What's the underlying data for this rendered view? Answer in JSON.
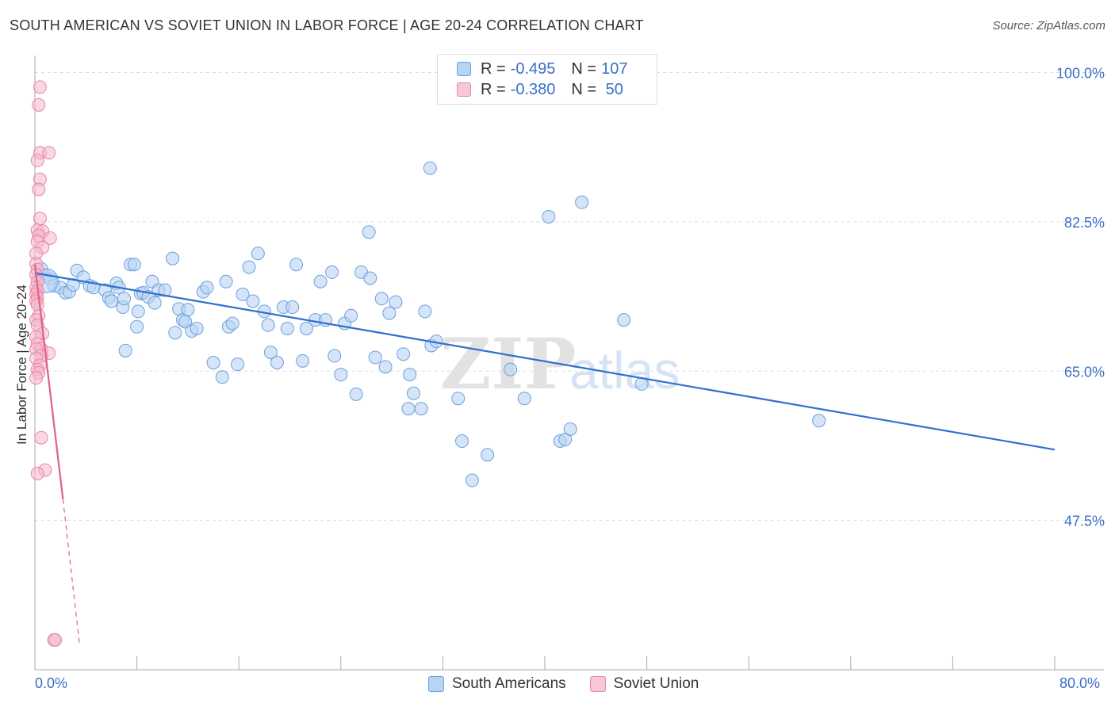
{
  "title": "SOUTH AMERICAN VS SOVIET UNION IN LABOR FORCE | AGE 20-24 CORRELATION CHART",
  "source": "Source: ZipAtlas.com",
  "legend": {
    "rows": [
      {
        "r_label": "R = ",
        "r_value": "-0.495",
        "n_label": "N = ",
        "n_value": "107",
        "color": "#a8c8ee",
        "border": "#6a9fe0"
      },
      {
        "r_label": "R = ",
        "r_value": "-0.380",
        "n_label": "N = ",
        "n_value": " 50",
        "color": "#f6b6ca",
        "border": "#e887a6"
      }
    ]
  },
  "bottom_legend": [
    "South Americans",
    "Soviet Union"
  ],
  "chart_data": {
    "type": "scatter",
    "xlabel": "",
    "ylabel": "In Labor Force | Age 20-24",
    "xlim": [
      0,
      80
    ],
    "ylim": [
      30,
      102
    ],
    "x_tick_labels": [
      "0.0%",
      "80.0%"
    ],
    "y_tick_labels": [
      "100.0%",
      "82.5%",
      "65.0%",
      "47.5%"
    ],
    "y_ticks": [
      100,
      82.5,
      65,
      47.5
    ],
    "watermark": "ZIPatlas",
    "colors": {
      "blue": "#6a9fe0",
      "blue_fill": "#b9d3f2",
      "blue_line": "#2f6fd0",
      "pink": "#e887a6",
      "pink_fill": "#f6b6ca",
      "pink_line": "#e0608a"
    },
    "series": [
      {
        "name": "South Americans",
        "trend": {
          "x": [
            0,
            80
          ],
          "y": [
            76.5,
            55.8
          ]
        },
        "points": [
          [
            0.5,
            77
          ],
          [
            0.8,
            76.2
          ],
          [
            1.2,
            75.8
          ],
          [
            1.5,
            75
          ],
          [
            2,
            74.8
          ],
          [
            2.4,
            74.2
          ],
          [
            2.7,
            74.3
          ],
          [
            3.3,
            76.8
          ],
          [
            3.0,
            75.1
          ],
          [
            3.8,
            76
          ],
          [
            4.3,
            75
          ],
          [
            4.6,
            74.8
          ],
          [
            5.5,
            74.5
          ],
          [
            5.8,
            73.6
          ],
          [
            6.0,
            73.2
          ],
          [
            6.4,
            75.3
          ],
          [
            6.6,
            74.8
          ],
          [
            6.9,
            72.5
          ],
          [
            7.0,
            73.5
          ],
          [
            7.1,
            67.4
          ],
          [
            7.5,
            77.5
          ],
          [
            7.8,
            77.5
          ],
          [
            8.0,
            70.2
          ],
          [
            8.1,
            72.0
          ],
          [
            8.3,
            74.1
          ],
          [
            8.5,
            74.2
          ],
          [
            8.9,
            73.7
          ],
          [
            9.2,
            75.5
          ],
          [
            9.4,
            73.0
          ],
          [
            9.7,
            74.5
          ],
          [
            10.2,
            74.5
          ],
          [
            10.8,
            78.2
          ],
          [
            11.0,
            69.5
          ],
          [
            11.3,
            72.3
          ],
          [
            11.6,
            71.0
          ],
          [
            11.8,
            70.8
          ],
          [
            12.0,
            72.2
          ],
          [
            12.3,
            69.7
          ],
          [
            12.7,
            70.0
          ],
          [
            13.2,
            74.3
          ],
          [
            13.5,
            74.8
          ],
          [
            14.0,
            66.0
          ],
          [
            14.7,
            64.3
          ],
          [
            15.0,
            75.5
          ],
          [
            15.2,
            70.2
          ],
          [
            15.5,
            70.6
          ],
          [
            15.9,
            65.8
          ],
          [
            16.3,
            74.0
          ],
          [
            16.8,
            77.2
          ],
          [
            17.1,
            73.2
          ],
          [
            17.5,
            78.8
          ],
          [
            18.0,
            72.0
          ],
          [
            18.3,
            70.4
          ],
          [
            18.5,
            67.2
          ],
          [
            19.0,
            66.0
          ],
          [
            19.5,
            72.5
          ],
          [
            19.8,
            70.0
          ],
          [
            20.2,
            72.5
          ],
          [
            20.5,
            77.5
          ],
          [
            21.0,
            66.2
          ],
          [
            21.3,
            70.0
          ],
          [
            22.0,
            71.0
          ],
          [
            22.4,
            75.5
          ],
          [
            22.8,
            71.0
          ],
          [
            23.3,
            76.6
          ],
          [
            23.5,
            66.8
          ],
          [
            24.0,
            64.6
          ],
          [
            24.3,
            70.6
          ],
          [
            24.8,
            71.5
          ],
          [
            25.2,
            62.3
          ],
          [
            25.6,
            76.6
          ],
          [
            26.2,
            81.3
          ],
          [
            26.3,
            75.9
          ],
          [
            26.7,
            66.6
          ],
          [
            27.2,
            73.5
          ],
          [
            27.5,
            65.5
          ],
          [
            27.8,
            71.8
          ],
          [
            28.3,
            73.1
          ],
          [
            28.9,
            67.0
          ],
          [
            29.3,
            60.6
          ],
          [
            29.4,
            64.6
          ],
          [
            29.7,
            62.4
          ],
          [
            30.3,
            60.6
          ],
          [
            30.6,
            72.0
          ],
          [
            31.0,
            88.8
          ],
          [
            31.1,
            68.0
          ],
          [
            31.5,
            68.5
          ],
          [
            33.2,
            61.8
          ],
          [
            33.5,
            56.8
          ],
          [
            34.3,
            52.2
          ],
          [
            35.5,
            55.2
          ],
          [
            37.3,
            65.2
          ],
          [
            38.4,
            61.8
          ],
          [
            40.3,
            83.1
          ],
          [
            41.2,
            56.8
          ],
          [
            41.6,
            57.0
          ],
          [
            42.0,
            58.2
          ],
          [
            42.9,
            84.8
          ],
          [
            46.2,
            71.0
          ],
          [
            47.6,
            63.5
          ],
          [
            61.5,
            59.2
          ]
        ]
      },
      {
        "name": "Soviet Union",
        "trend": {
          "x": [
            0,
            2.2
          ],
          "y": [
            77.5,
            50.0
          ],
          "dash_to": [
            3.5,
            33.0
          ]
        },
        "points": [
          [
            0.4,
            98.3
          ],
          [
            0.3,
            96.2
          ],
          [
            0.4,
            90.6
          ],
          [
            0.2,
            89.7
          ],
          [
            1.1,
            90.6
          ],
          [
            0.4,
            87.5
          ],
          [
            0.3,
            86.3
          ],
          [
            0.4,
            82.9
          ],
          [
            0.2,
            81.5
          ],
          [
            0.6,
            81.4
          ],
          [
            0.3,
            80.9
          ],
          [
            1.2,
            80.6
          ],
          [
            0.2,
            80.2
          ],
          [
            0.6,
            79.5
          ],
          [
            0.1,
            78.8
          ],
          [
            0.1,
            77.6
          ],
          [
            0.2,
            76.9
          ],
          [
            0.1,
            76.3
          ],
          [
            0.2,
            75.5
          ],
          [
            0.1,
            74.8
          ],
          [
            0.2,
            74.4
          ],
          [
            0.1,
            74.0
          ],
          [
            0.2,
            73.6
          ],
          [
            0.1,
            73.2
          ],
          [
            0.2,
            72.8
          ],
          [
            0.3,
            71.5
          ],
          [
            0.1,
            71.0
          ],
          [
            0.2,
            70.4
          ],
          [
            0.6,
            69.4
          ],
          [
            0.1,
            69.0
          ],
          [
            0.2,
            68.2
          ],
          [
            0.5,
            67.6
          ],
          [
            0.1,
            67.6
          ],
          [
            1.1,
            67.1
          ],
          [
            0.5,
            66.8
          ],
          [
            0.1,
            66.5
          ],
          [
            0.4,
            65.7
          ],
          [
            0.2,
            65.2
          ],
          [
            0.3,
            64.8
          ],
          [
            0.1,
            64.2
          ],
          [
            0.5,
            57.2
          ],
          [
            0.8,
            53.4
          ],
          [
            0.2,
            53.0
          ],
          [
            1.5,
            33.5
          ],
          [
            1.6,
            33.5
          ]
        ]
      }
    ]
  }
}
